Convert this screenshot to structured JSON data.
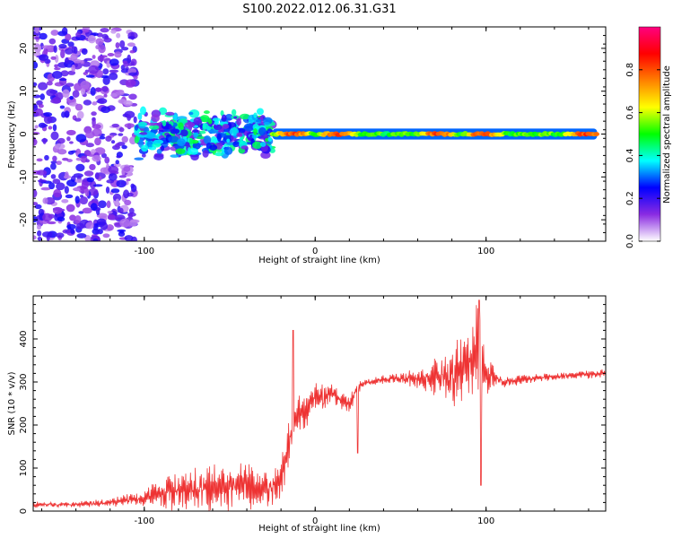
{
  "title": "S100.2022.012.06.31.G31",
  "chart_data": [
    {
      "type": "heatmap",
      "xlabel": "Height of straight line (km)",
      "ylabel": "Frequency (Hz)",
      "xlim": [
        -165,
        170
      ],
      "ylim": [
        -25,
        25
      ],
      "xticks": [
        -100,
        0,
        100
      ],
      "xtick_labels": [
        "-100",
        "0",
        "100"
      ],
      "yticks": [
        -20,
        -10,
        0,
        10,
        20
      ],
      "ytick_labels": [
        "-20",
        "-10",
        "0",
        "10",
        "20"
      ],
      "colorbar": {
        "label": "Normalized spectral amplitude",
        "range": [
          0,
          1
        ],
        "ticks": [
          0,
          0.2,
          0.4,
          0.6,
          0.8
        ],
        "tick_labels": [
          "0.0",
          "0.2",
          "0.4",
          "0.6",
          "0.8"
        ],
        "colors": [
          "#ffffff",
          "#8a2be2",
          "#0000ff",
          "#00ffff",
          "#00ff00",
          "#ffff00",
          "#ff8000",
          "#ff0000",
          "#ff0080"
        ]
      },
      "regions": [
        {
          "x_range": [
            -165,
            -105
          ],
          "freq_spread": 25,
          "amplitude": 0.15,
          "description": "scattered noise"
        },
        {
          "x_range": [
            -105,
            -25
          ],
          "freq_spread": 6,
          "amplitude": 0.3,
          "description": "clustered blobs"
        },
        {
          "x_range": [
            -25,
            165
          ],
          "freq_center": 0,
          "freq_halfwidth": 0.8,
          "amplitude": 0.85,
          "description": "narrow line at 0 Hz"
        }
      ]
    },
    {
      "type": "line",
      "xlabel": "Height of straight line (km)",
      "ylabel": "SNR (10 * v/v)",
      "xlim": [
        -165,
        170
      ],
      "ylim": [
        0,
        500
      ],
      "xticks": [
        -100,
        0,
        100
      ],
      "xtick_labels": [
        "-100",
        "0",
        "100"
      ],
      "yticks": [
        0,
        100,
        200,
        300,
        400
      ],
      "ytick_labels": [
        "0",
        "100",
        "200",
        "300",
        "400"
      ],
      "color": "#ee3333",
      "x": [
        -165,
        -140,
        -120,
        -100,
        -80,
        -60,
        -40,
        -25,
        -20,
        -15,
        -10,
        0,
        10,
        20,
        25,
        30,
        40,
        50,
        60,
        70,
        80,
        90,
        95,
        100,
        110,
        130,
        150,
        170
      ],
      "y": [
        15,
        15,
        20,
        30,
        50,
        55,
        60,
        50,
        80,
        170,
        220,
        260,
        270,
        250,
        290,
        300,
        305,
        310,
        305,
        320,
        310,
        340,
        370,
        320,
        300,
        310,
        315,
        320
      ],
      "noise_amplitude": [
        6,
        6,
        8,
        15,
        40,
        45,
        45,
        40,
        45,
        50,
        40,
        30,
        20,
        20,
        15,
        10,
        10,
        10,
        20,
        40,
        60,
        90,
        100,
        40,
        10,
        8,
        8,
        8
      ],
      "spikes": [
        {
          "x": -13,
          "y": 420
        },
        {
          "x": 5,
          "y": 250
        },
        {
          "x": 25,
          "y": 135
        },
        {
          "x": 96,
          "y": 490
        },
        {
          "x": 97,
          "y": 60
        }
      ]
    }
  ]
}
